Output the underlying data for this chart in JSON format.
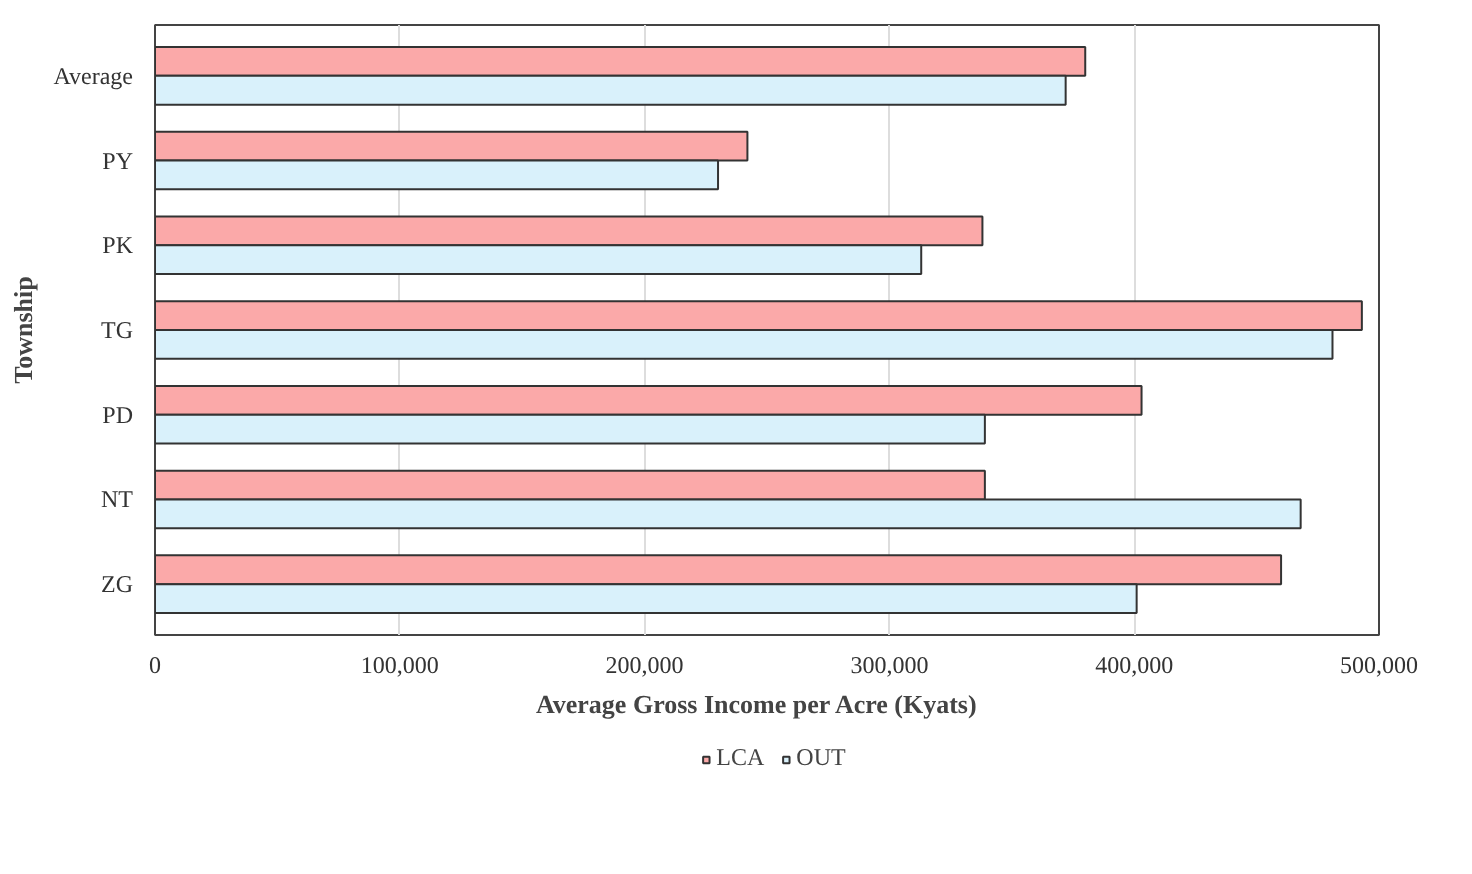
{
  "chart_data": {
    "type": "bar",
    "orientation": "horizontal",
    "xlabel": "Average  Gross Income  per  Acre (Kyats)",
    "ylabel": "Township",
    "categories": [
      "Average",
      "PY",
      "PK",
      "TG",
      "PD",
      "NT",
      "ZG"
    ],
    "series": [
      {
        "name": "LCA",
        "color": "#fba9a9",
        "values": [
          380000,
          242000,
          338000,
          493000,
          403000,
          339000,
          460000
        ]
      },
      {
        "name": "OUT",
        "color": "#d9f1fb",
        "values": [
          372000,
          230000,
          313000,
          481000,
          339000,
          468000,
          401000
        ]
      }
    ],
    "xlim": [
      0,
      500000
    ],
    "xticks": [
      0,
      {
        "value": 100000,
        "label": "100,000"
      },
      {
        "value": 200000,
        "label": "200,000"
      },
      {
        "value": 300000,
        "label": "300,000"
      },
      {
        "value": 400000,
        "label": "400,000"
      },
      {
        "value": 500000,
        "label": "500,000"
      }
    ],
    "grid": "x",
    "legend": "bottom"
  }
}
